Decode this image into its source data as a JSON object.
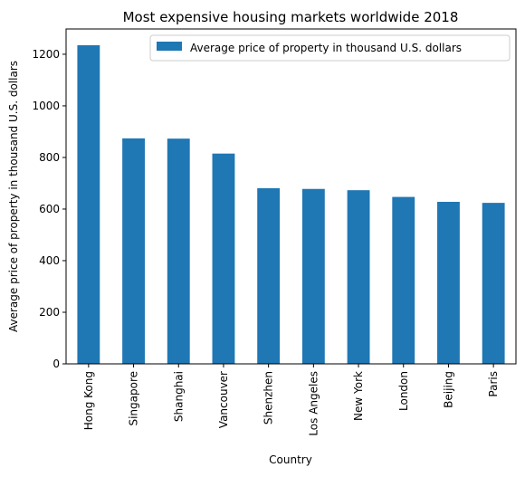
{
  "chart_data": {
    "type": "bar",
    "title": "Most expensive housing markets worldwide 2018",
    "xlabel": "Country",
    "ylabel": "Average price of property in thousand U.S. dollars",
    "categories": [
      "Hong Kong",
      "Singapore",
      "Shanghai",
      "Vancouver",
      "Shenzhen",
      "Los Angeles",
      "New York",
      "London",
      "Beijing",
      "Paris"
    ],
    "series": [
      {
        "name": "Average price of property in thousand U.S. dollars",
        "values": [
          1235,
          874,
          873,
          815,
          681,
          678,
          673,
          647,
          628,
          624
        ],
        "color": "#1f77b4"
      }
    ],
    "ylim": [
      0,
      1298
    ],
    "yticks": [
      "0",
      "200",
      "400",
      "600",
      "800",
      "1000",
      "1200"
    ],
    "legend_position": "top-right",
    "grid": false
  }
}
